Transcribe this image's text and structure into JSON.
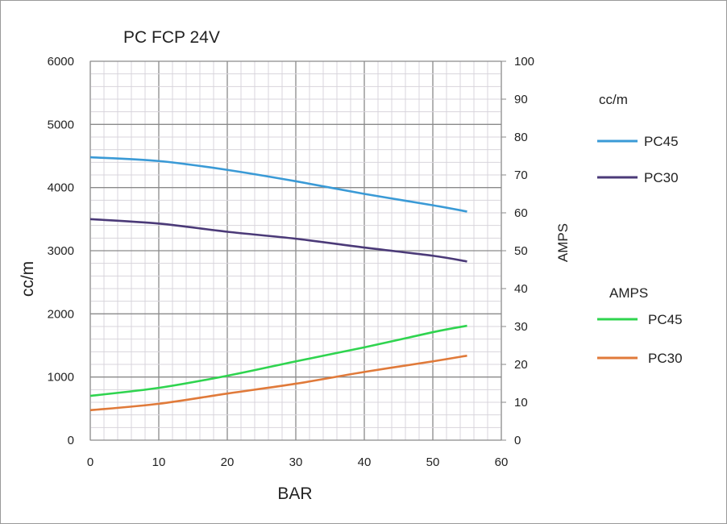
{
  "chart_data": {
    "type": "line",
    "title": "PC FCP 24V",
    "xlabel": "BAR",
    "ylabel": "cc/m",
    "y2label": "AMPS",
    "xlim": [
      0,
      60
    ],
    "ylim": [
      0,
      6000
    ],
    "y2lim": [
      0,
      100
    ],
    "xticks": [
      "0",
      "10",
      "20",
      "30",
      "40",
      "50",
      "60"
    ],
    "yticks": [
      "0",
      "1000",
      "2000",
      "3000",
      "4000",
      "5000",
      "6000"
    ],
    "y2ticks": [
      "0",
      "10",
      "20",
      "30",
      "40",
      "50",
      "60",
      "70",
      "80",
      "90",
      "100"
    ],
    "grid": true,
    "x": [
      0,
      10,
      20,
      30,
      40,
      50,
      55
    ],
    "legend_groups": [
      {
        "title": "cc/m",
        "series": [
          {
            "name": "PC45",
            "axis": "left",
            "color": "#3a9ad6",
            "values": [
              4480,
              4420,
              4280,
              4100,
              3900,
              3720,
              3620
            ]
          },
          {
            "name": "PC30",
            "axis": "left",
            "color": "#4b3a78",
            "values": [
              3500,
              3430,
              3300,
              3190,
              3050,
              2920,
              2830
            ]
          }
        ]
      },
      {
        "title": "AMPS",
        "series": [
          {
            "name": "PC45",
            "axis": "right",
            "color": "#2fd44f",
            "values": [
              11.7,
              13.8,
              17,
              20.8,
              24.5,
              28.5,
              30.2
            ]
          },
          {
            "name": "PC30",
            "axis": "right",
            "color": "#e07a3a",
            "values": [
              7.9,
              9.6,
              12.3,
              14.9,
              18,
              20.8,
              22.3
            ]
          }
        ]
      }
    ],
    "legend_position": "right"
  }
}
